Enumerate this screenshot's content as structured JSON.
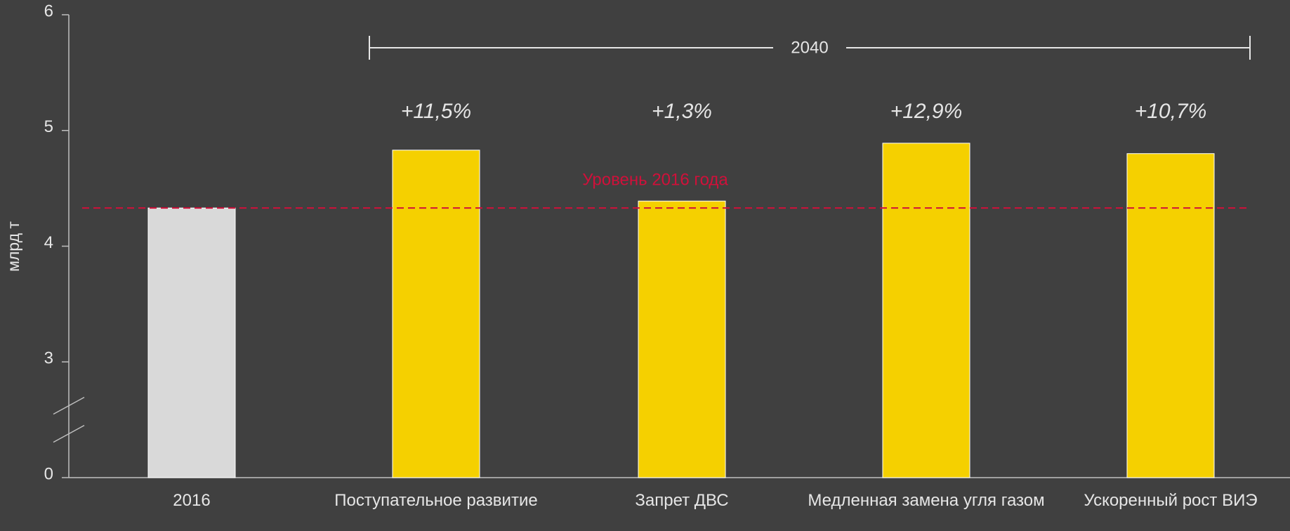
{
  "chart_data": {
    "type": "bar",
    "y_label": "млрд т",
    "categories": [
      "2016",
      "Поступательное развитие",
      "Запрет ДВС",
      "Медленная замена угля газом",
      "Ускоренный рост ВИЭ"
    ],
    "values": [
      4.33,
      4.83,
      4.39,
      4.89,
      4.8
    ],
    "colors": [
      "#d9d9d9",
      "#f5d000",
      "#f5d000",
      "#f5d000",
      "#f5d000"
    ],
    "growth_labels": [
      null,
      "+11,5%",
      "+1,3%",
      "+12,9%",
      "+10,7%"
    ],
    "period_label": "2040",
    "reference_line": {
      "value": 4.33,
      "label": "Уровень 2016 года",
      "color": "#d0103a"
    },
    "ylim": [
      0,
      6
    ],
    "yticks": [
      0,
      3,
      4,
      5,
      6
    ],
    "axis_break": [
      0,
      3
    ],
    "grid": false
  }
}
